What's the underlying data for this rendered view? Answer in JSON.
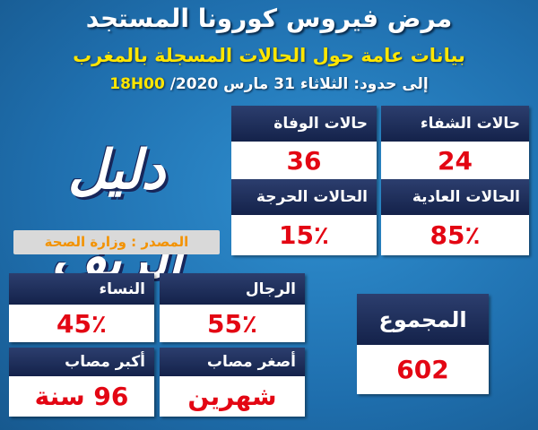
{
  "header": {
    "title": "مرض فيروس كورونا المستجد",
    "subtitle": "بيانات عامة حول الحالات المسجلة بالمغرب",
    "date": "إلى حدود: الثلاثاء 31 مارس 2020/",
    "time": "18H00"
  },
  "logo": "دليل الريف",
  "source": "المصدر : وزارة الصحة",
  "cards": [
    {
      "label": "حالات الشفاء",
      "value": "24"
    },
    {
      "label": "حالات الوفاة",
      "value": "36"
    },
    {
      "label": "الحالات العادية",
      "value": "85٪"
    },
    {
      "label": "الحالات الحرجة",
      "value": "15٪"
    },
    {
      "label": "الرجال",
      "value": "55٪"
    },
    {
      "label": "النساء",
      "value": "45٪"
    },
    {
      "label": "أصغر مصاب",
      "value": "شهرين"
    },
    {
      "label": "أكبر مصاب",
      "value": "96 سنة"
    },
    {
      "label": "المجموع",
      "value": "602"
    }
  ]
}
